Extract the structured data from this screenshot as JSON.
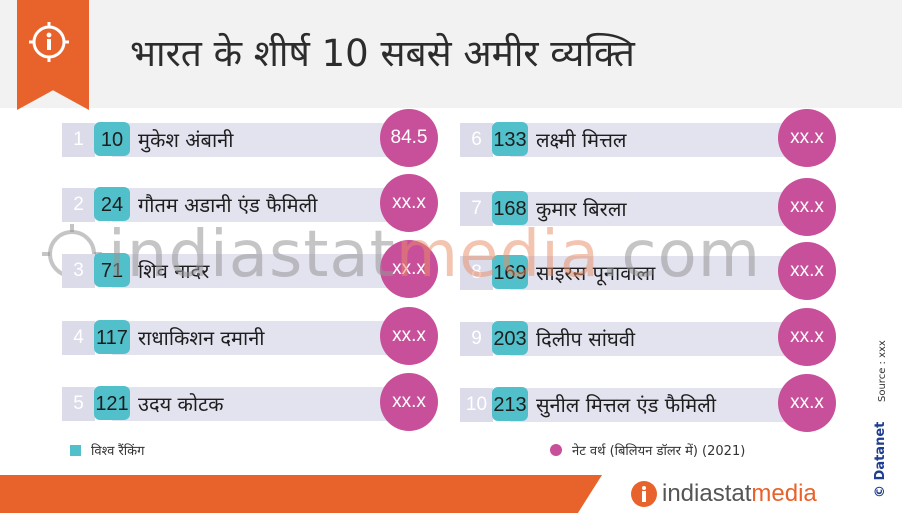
{
  "title": "भारत के शीर्ष 10 सबसे अमीर व्यक्ति",
  "colors": {
    "accent": "#e8632b",
    "rank_badge": "#52c0cb",
    "worth_circle": "#c8509a",
    "band": "#e3e2ef"
  },
  "left_list": [
    {
      "num": "1",
      "rank": "10",
      "name": "मुकेश अंबानी",
      "worth": "84.5"
    },
    {
      "num": "2",
      "rank": "24",
      "name": "गौतम अडानी एंड फैमिली",
      "worth": "xx.x"
    },
    {
      "num": "3",
      "rank": "71",
      "name": "शिव नादर",
      "worth": "xx.x"
    },
    {
      "num": "4",
      "rank": "117",
      "name": "राधाकिशन दमानी",
      "worth": "xx.x"
    },
    {
      "num": "5",
      "rank": "121",
      "name": "उदय कोटक",
      "worth": "xx.x"
    }
  ],
  "right_list": [
    {
      "num": "6",
      "rank": "133",
      "name": "लक्ष्मी मित्तल",
      "worth": "xx.x"
    },
    {
      "num": "7",
      "rank": "168",
      "name": "कुमार बिरला",
      "worth": "xx.x"
    },
    {
      "num": "8",
      "rank": "169",
      "name": "साइरस पूनावाला",
      "worth": "xx.x"
    },
    {
      "num": "9",
      "rank": "203",
      "name": "दिलीप सांघवी",
      "worth": "xx.x"
    },
    {
      "num": "10",
      "rank": "213",
      "name": "सुनील मित्तल एंड फैमिली",
      "worth": "xx.x"
    }
  ],
  "legend": {
    "rank_label": "विश्व रैंकिंग",
    "worth_label": "नेट वर्थ (बिलियन डॉलर में) (2021)"
  },
  "watermark": {
    "part1": "indiastat",
    "part2": "media",
    "part3": ".com"
  },
  "brand": {
    "part1": "indiastat",
    "part2": "media"
  },
  "side": {
    "source": "Source : xxx",
    "credit": "© Datanet"
  },
  "icons": {
    "header": "info-icon",
    "brand": "info-icon"
  }
}
